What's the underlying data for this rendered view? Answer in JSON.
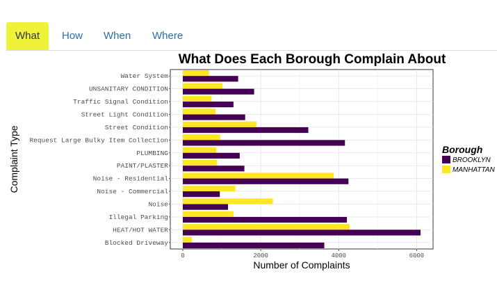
{
  "tabs": [
    {
      "label": "What",
      "active": true
    },
    {
      "label": "How",
      "active": false
    },
    {
      "label": "When",
      "active": false
    },
    {
      "label": "Where",
      "active": false
    }
  ],
  "colors": {
    "tab_active": "#eef33a",
    "tab_link": "#2a6ea8",
    "brooklyn": "#440154",
    "manhattan": "#fde725"
  },
  "chart_data": {
    "type": "bar",
    "orientation": "horizontal",
    "title": "What Does Each Borough Complain About",
    "xlabel": "Number of Complaints",
    "ylabel": "Complaint Type",
    "xlim": [
      0,
      6400
    ],
    "xticks": [
      0,
      2000,
      4000,
      6000
    ],
    "xtick_labels": [
      "0",
      "2000",
      "4000",
      "6000"
    ],
    "grid": true,
    "legend": {
      "title": "Borough",
      "position": "right"
    },
    "categories": [
      "Water System",
      "UNSANITARY CONDITION",
      "Traffic Signal Condition",
      "Street Light Condition",
      "Street Condition",
      "Request Large Bulky Item Collection",
      "PLUMBING",
      "PAINT/PLASTER",
      "Noise - Residential",
      "Noise - Commercial",
      "Noise",
      "Illegal Parking",
      "HEAT/HOT WATER",
      "Blocked Driveway"
    ],
    "series": [
      {
        "name": "BROOKLYN",
        "color": "#440154",
        "values": [
          1420,
          1830,
          1300,
          1600,
          3220,
          4160,
          1460,
          1580,
          4250,
          950,
          1160,
          4210,
          6100,
          3630
        ]
      },
      {
        "name": "MANHATTAN",
        "color": "#fde725",
        "values": [
          670,
          1020,
          740,
          840,
          1890,
          960,
          860,
          880,
          3870,
          1350,
          2310,
          1300,
          4280,
          230
        ]
      }
    ]
  }
}
